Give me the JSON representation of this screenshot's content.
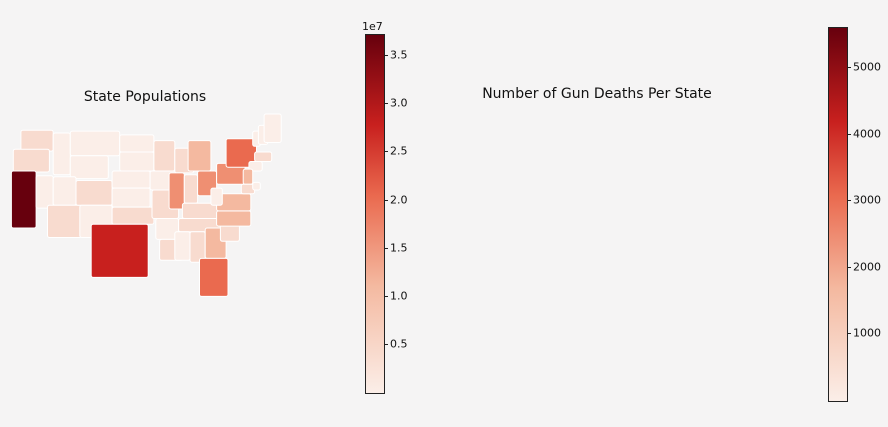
{
  "panels": [
    {
      "title": "State Populations",
      "colorbar": {
        "exponent_label": "1e7",
        "ticks": [
          "0.5",
          "1.0",
          "1.5",
          "2.0",
          "2.5",
          "3.0",
          "3.5"
        ],
        "tick_values": [
          0.5,
          1.0,
          1.5,
          2.0,
          2.5,
          3.0,
          3.5
        ],
        "range": [
          0.0,
          3.72
        ]
      }
    },
    {
      "title": "Number of Gun Deaths Per State",
      "colorbar": {
        "ticks": [
          "1000",
          "2000",
          "3000",
          "4000",
          "5000"
        ],
        "tick_values": [
          1000,
          2000,
          3000,
          4000,
          5000
        ],
        "range": [
          0,
          5600
        ]
      }
    }
  ],
  "colors": {
    "cmap_start": "#fbeee8",
    "cmap_mid1": "#f4b9a0",
    "cmap_mid2": "#ea6a4f",
    "cmap_mid3": "#c8201e",
    "cmap_end": "#67000d",
    "state_border": "#ffffff"
  }
}
